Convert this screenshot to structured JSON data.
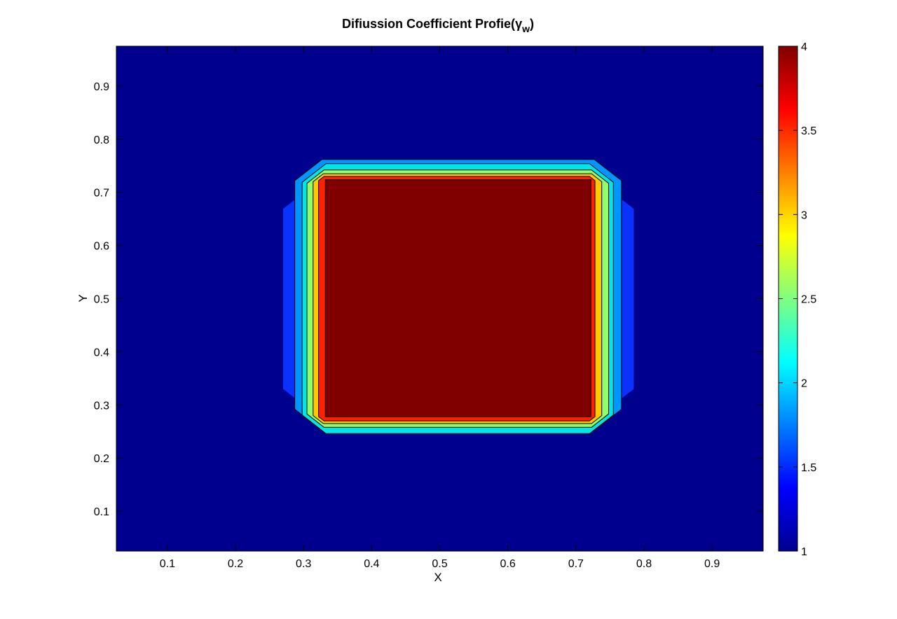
{
  "chart_data": {
    "type": "heatmap",
    "subtype": "filled-contour",
    "title": {
      "main": "Difiussion Coefficient Profie(",
      "symbol": "γ",
      "subscript": "w",
      "close": ")"
    },
    "xlabel": "X",
    "ylabel": "Y",
    "xlim": [
      0.025,
      0.975
    ],
    "ylim": [
      0.025,
      0.975
    ],
    "xticks": [
      0.1,
      0.2,
      0.3,
      0.4,
      0.5,
      0.6,
      0.7,
      0.8,
      0.9
    ],
    "yticks": [
      0.1,
      0.2,
      0.3,
      0.4,
      0.5,
      0.6,
      0.7,
      0.8,
      0.9
    ],
    "xtick_labels": [
      "0.1",
      "0.2",
      "0.3",
      "0.4",
      "0.5",
      "0.6",
      "0.7",
      "0.8",
      "0.9"
    ],
    "ytick_labels": [
      "0.1",
      "0.2",
      "0.3",
      "0.4",
      "0.5",
      "0.6",
      "0.7",
      "0.8",
      "0.9"
    ],
    "grid": false,
    "colormap": "jet",
    "background_value": 1,
    "colorbar": {
      "range": [
        1,
        4
      ],
      "ticks": [
        1,
        1.5,
        2,
        2.5,
        3,
        3.5,
        4
      ],
      "tick_labels": [
        "1",
        "1.5",
        "2",
        "2.5",
        "3",
        "3.5",
        "4"
      ],
      "placement": "right"
    },
    "contour_levels": [
      {
        "value": 1.33,
        "color": "#0a32ff",
        "x": [
          0.27,
          0.785
        ],
        "y": [
          0.272,
          0.727
        ],
        "corner_cut": 0.058
      },
      {
        "value": 1.67,
        "color": "#0096ff",
        "x": [
          0.287,
          0.767
        ],
        "y": [
          0.252,
          0.762
        ],
        "corner_cut": 0.04
      },
      {
        "value": 2.33,
        "color": "#00e6e6",
        "x": [
          0.298,
          0.755
        ],
        "y": [
          0.246,
          0.754
        ],
        "corner_cut": 0.035
      },
      {
        "value": 2.67,
        "color": "#90ff6a",
        "x": [
          0.305,
          0.748
        ],
        "y": [
          0.258,
          0.742
        ],
        "corner_cut": 0.025
      },
      {
        "value": 3.0,
        "color": "#ffc800",
        "x": [
          0.314,
          0.738
        ],
        "y": [
          0.265,
          0.735
        ],
        "corner_cut": 0.015
      },
      {
        "value": 3.67,
        "color": "#ff2000",
        "x": [
          0.322,
          0.728
        ],
        "y": [
          0.27,
          0.73
        ],
        "corner_cut": 0.008
      },
      {
        "value": 4.0,
        "color": "#800000",
        "x": [
          0.332,
          0.722
        ],
        "y": [
          0.278,
          0.724
        ],
        "corner_cut": 0.0
      }
    ],
    "colors": {
      "background": "#00008f",
      "line": "#000000"
    }
  }
}
